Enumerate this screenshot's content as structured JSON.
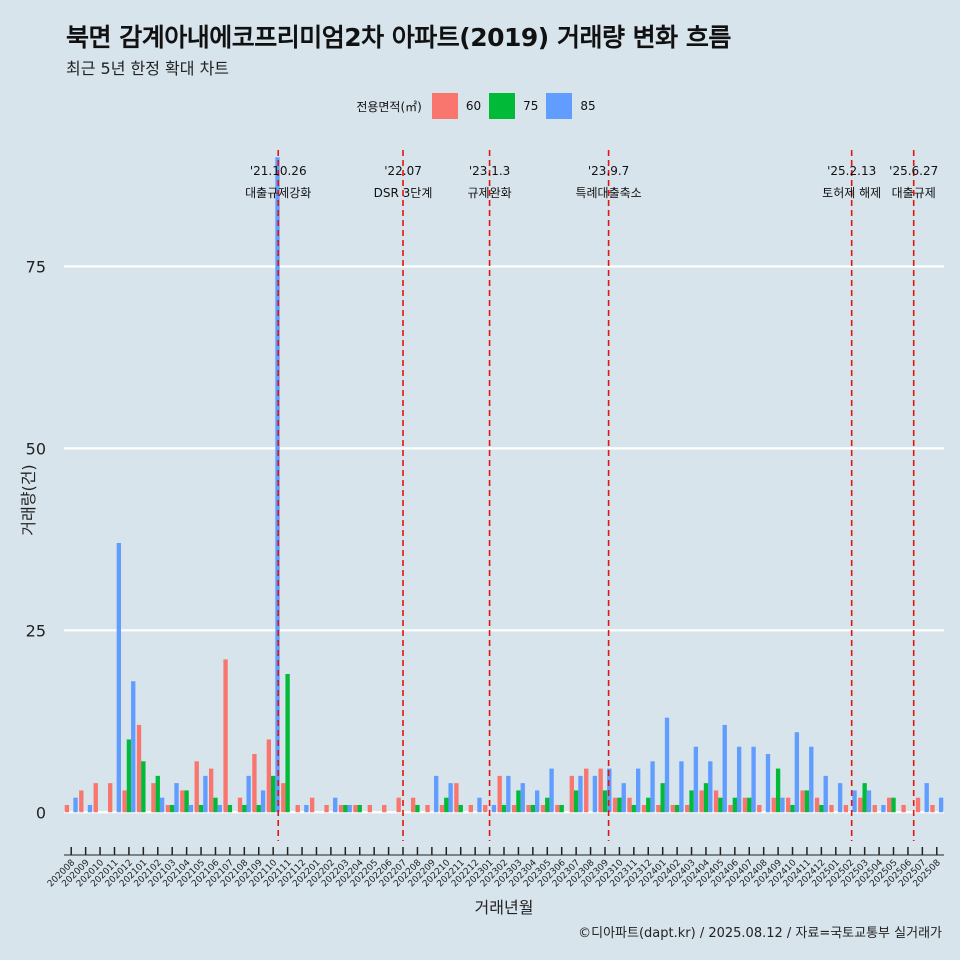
{
  "header": {
    "title": "북면 감계아내에코프리미엄2차 아파트(2019) 거래량 변화 흐름",
    "subtitle": "최근 5년 한정 확대 차트"
  },
  "legend": {
    "title": "전용면적(㎡)",
    "items": [
      {
        "label": "60",
        "color": "#f8766d"
      },
      {
        "label": "75",
        "color": "#00ba38"
      },
      {
        "label": "85",
        "color": "#619cff"
      }
    ]
  },
  "footer": {
    "credit": "©디아파트(dapt.kr) / 2025.08.12 / 자료=국토교통부 실거래가"
  },
  "chart_data": {
    "type": "bar",
    "xlabel": "거래년월",
    "ylabel": "거래량(건)",
    "ylim": [
      -4.5,
      91
    ],
    "yticks": [
      0,
      25,
      50,
      75
    ],
    "grid": true,
    "legend_position": "top",
    "categories": [
      "202008",
      "202009",
      "202010",
      "202011",
      "202012",
      "202101",
      "202102",
      "202103",
      "202104",
      "202105",
      "202106",
      "202107",
      "202108",
      "202109",
      "202110",
      "202111",
      "202112",
      "202201",
      "202202",
      "202203",
      "202204",
      "202205",
      "202206",
      "202207",
      "202208",
      "202209",
      "202210",
      "202211",
      "202212",
      "202301",
      "202302",
      "202303",
      "202304",
      "202305",
      "202306",
      "202307",
      "202308",
      "202309",
      "202310",
      "202311",
      "202312",
      "202401",
      "202402",
      "202403",
      "202404",
      "202405",
      "202406",
      "202407",
      "202408",
      "202409",
      "202410",
      "202411",
      "202412",
      "202501",
      "202502",
      "202503",
      "202504",
      "202505",
      "202506",
      "202507",
      "202508"
    ],
    "series": [
      {
        "name": "60",
        "color": "#f8766d",
        "values": [
          1,
          3,
          4,
          4,
          3,
          12,
          4,
          1,
          3,
          7,
          6,
          21,
          2,
          8,
          10,
          4,
          1,
          2,
          1,
          1,
          1,
          1,
          1,
          2,
          2,
          1,
          1,
          4,
          1,
          1,
          5,
          1,
          1,
          1,
          1,
          5,
          6,
          6,
          2,
          2,
          1,
          1,
          1,
          1,
          3,
          3,
          1,
          2,
          1,
          2,
          2,
          3,
          2,
          1,
          1,
          2,
          1,
          2,
          1,
          2,
          1
        ]
      },
      {
        "name": "75",
        "color": "#00ba38",
        "values": [
          0,
          0,
          0,
          0,
          10,
          7,
          5,
          1,
          3,
          1,
          2,
          1,
          1,
          1,
          5,
          19,
          0,
          0,
          0,
          1,
          1,
          0,
          0,
          0,
          1,
          0,
          2,
          1,
          0,
          0,
          1,
          3,
          1,
          2,
          1,
          3,
          0,
          3,
          2,
          1,
          2,
          4,
          1,
          3,
          4,
          2,
          2,
          2,
          0,
          6,
          1,
          3,
          1,
          0,
          0,
          4,
          0,
          2,
          0,
          0,
          0
        ]
      },
      {
        "name": "85",
        "color": "#619cff",
        "values": [
          2,
          1,
          0,
          37,
          18,
          0,
          2,
          4,
          1,
          5,
          1,
          0,
          5,
          3,
          90,
          0,
          1,
          0,
          2,
          1,
          0,
          0,
          0,
          0,
          0,
          5,
          4,
          0,
          2,
          1,
          5,
          4,
          3,
          6,
          0,
          5,
          5,
          6,
          4,
          6,
          7,
          13,
          7,
          9,
          7,
          12,
          9,
          9,
          8,
          2,
          11,
          9,
          5,
          4,
          3,
          3,
          1,
          0,
          0,
          4,
          2
        ]
      }
    ],
    "events": [
      {
        "date": "'21.10.26",
        "label": "대출규제강화",
        "category": "202110",
        "offset": 0.35
      },
      {
        "date": "'22.07",
        "label": "DSR 3단계",
        "category": "202207",
        "offset": 0
      },
      {
        "date": "'23.1.3",
        "label": "규제완화",
        "category": "202301",
        "offset": 0
      },
      {
        "date": "'23.9.7",
        "label": "특례대출축소",
        "category": "202309",
        "offset": 0.25
      },
      {
        "date": "'25.2.13",
        "label": "토허제 해제",
        "category": "202502",
        "offset": 0.1
      },
      {
        "date": "'25.6.27",
        "label": "대출규제",
        "category": "202506",
        "offset": 0.4
      }
    ]
  }
}
